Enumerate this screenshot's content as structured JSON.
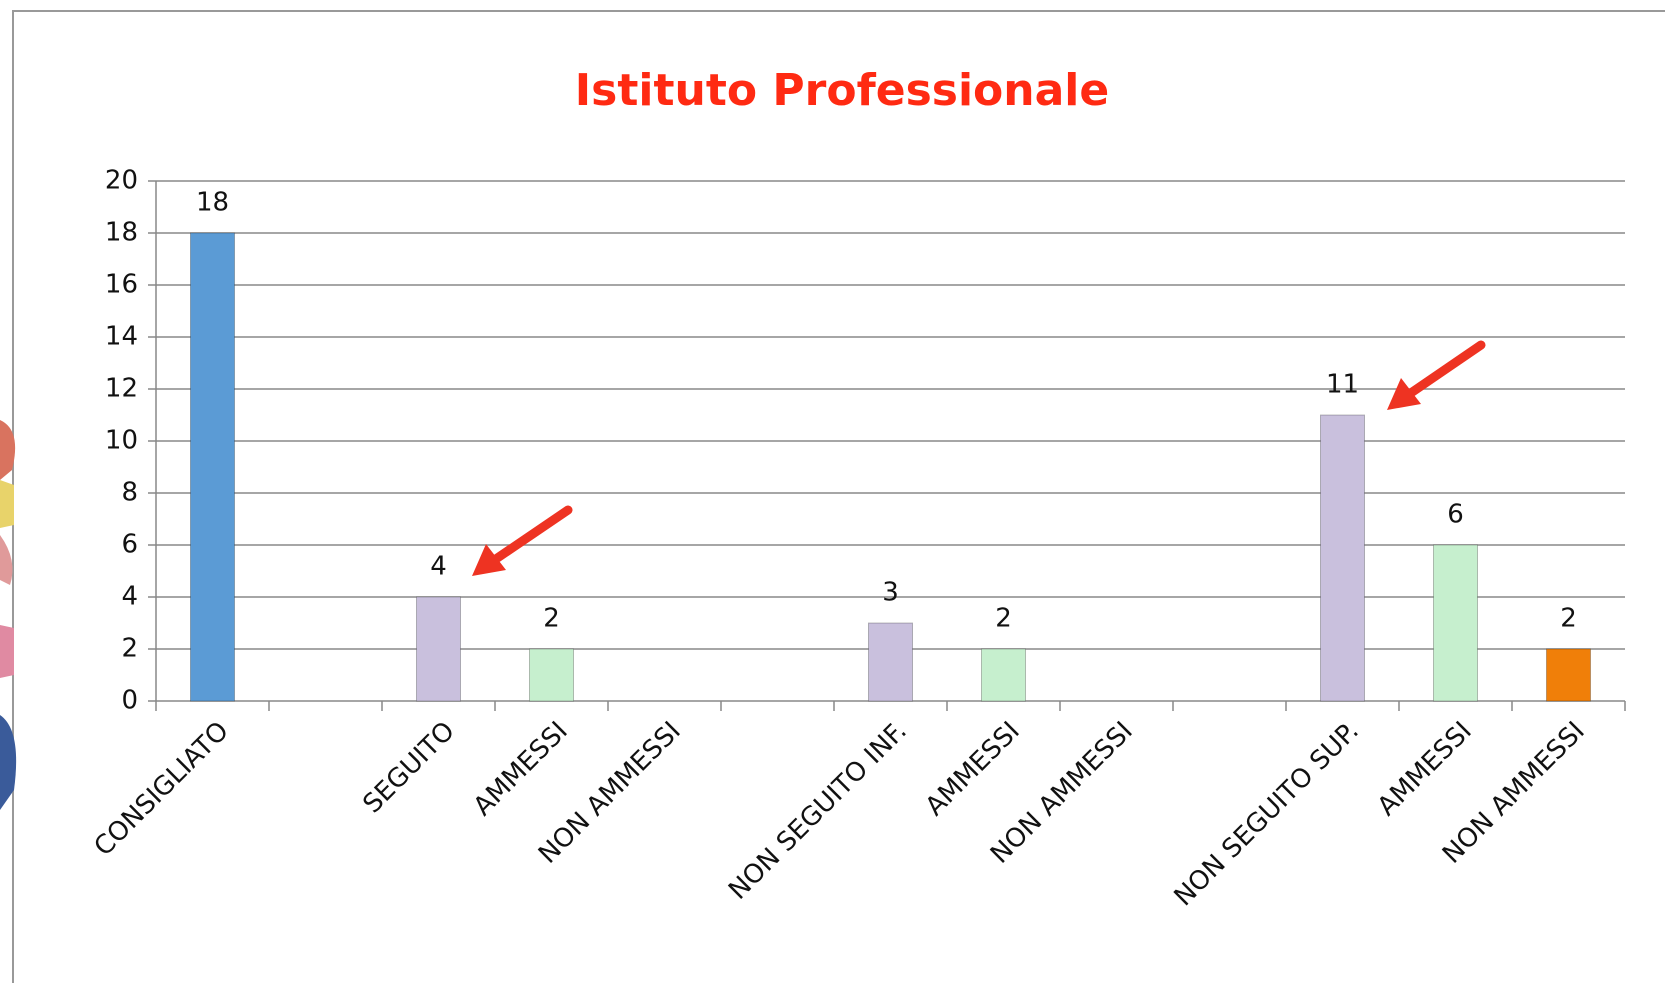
{
  "chart_data": {
    "type": "bar",
    "title": "Istituto Professionale",
    "categories": [
      "CONSIGLIATO",
      null,
      "SEGUITO",
      "AMMESSI",
      "NON AMMESSI",
      null,
      "NON SEGUITO INF.",
      "AMMESSI",
      "NON AMMESSI",
      null,
      "NON SEGUITO SUP.",
      "AMMESSI",
      "NON AMMESSI"
    ],
    "values": [
      18,
      null,
      4,
      2,
      null,
      null,
      3,
      2,
      null,
      null,
      11,
      6,
      2
    ],
    "colors": [
      "#5b9bd5",
      null,
      "#c9c0dd",
      "#c6efce",
      null,
      null,
      "#c9c0dd",
      "#c6efce",
      null,
      null,
      "#c9c0dd",
      "#c6efce",
      "#f07f09"
    ],
    "ylim": [
      0,
      20
    ],
    "yticks": [
      0,
      2,
      4,
      6,
      8,
      10,
      12,
      14,
      16,
      18,
      20
    ],
    "grid": true
  }
}
